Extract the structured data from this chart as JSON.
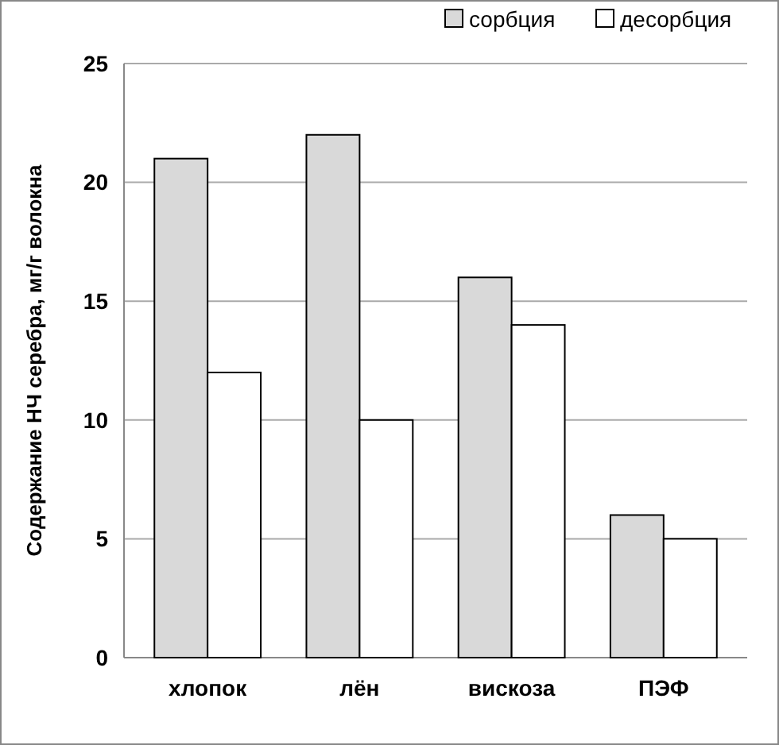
{
  "chart_data": {
    "type": "bar",
    "ylabel": "Содержание НЧ серебра, мг/г волокна",
    "categories": [
      "хлопок",
      "лён",
      "вискоза",
      "ПЭФ"
    ],
    "series": [
      {
        "name": "сорбция",
        "color": "#d9d9d9",
        "values": [
          21,
          22,
          16,
          6
        ]
      },
      {
        "name": "десорбция",
        "color": "#ffffff",
        "values": [
          12,
          10,
          14,
          5
        ]
      }
    ],
    "ylim": [
      0,
      25
    ],
    "yticks": [
      0,
      5,
      10,
      15,
      20,
      25
    ],
    "grid": "y",
    "legend": "top right"
  }
}
